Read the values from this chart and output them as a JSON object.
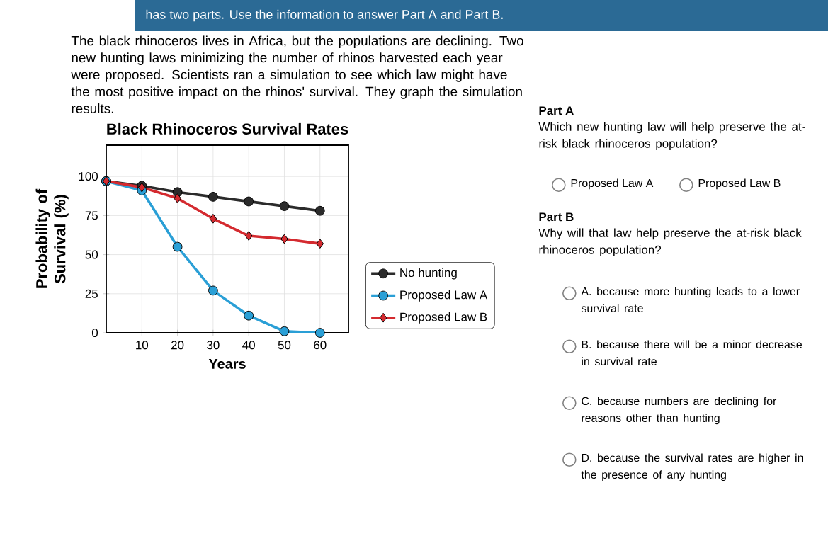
{
  "chart_data": {
    "type": "line",
    "title": "Black Rhinoceros Survival Rates",
    "xlabel": "Years",
    "ylabel": "Probability of Survival (%)",
    "x": [
      0,
      10,
      20,
      30,
      40,
      50,
      60
    ],
    "series": [
      {
        "name": "No hunting",
        "color": "#2b2b2b",
        "marker": "circle",
        "values": [
          97,
          94,
          90,
          87,
          84,
          81,
          78
        ]
      },
      {
        "name": "Proposed Law A",
        "color": "#2a9fd6",
        "marker": "circle",
        "values": [
          97,
          91,
          55,
          27,
          11,
          1,
          0
        ]
      },
      {
        "name": "Proposed Law B",
        "color": "#d42a2f",
        "marker": "diamond",
        "values": [
          97,
          93,
          86,
          73,
          62,
          60,
          57
        ]
      }
    ],
    "xlim": [
      0,
      68
    ],
    "ylim": [
      0,
      120
    ],
    "xticks": [
      10,
      20,
      30,
      40,
      50,
      60
    ],
    "yticks": [
      0,
      25,
      50,
      75,
      100
    ],
    "grid": true,
    "legend": "right",
    "line_style": "solid",
    "annotations": [
      "has two parts. Use the information to answer Part A and Part B.",
      "The black rhinoceros lives in Africa, but the populations are declining. Two new hunting laws minimizing the number of rhinos harvested each year were proposed. Scientists ran a simulation to see which law might have the most positive impact on the rhinos' survival. They graph the simulation results.",
      "Part A",
      "Which new hunting law will help preserve the at-risk black rhinoceros population?",
      "Proposed Law A",
      "Proposed Law B",
      "Part B",
      "Why will that law help preserve the at-risk black rhinoceros population?",
      "A. because more hunting leads to a lower survival rate",
      "B. because there will be a minor decrease in survival rate",
      "C. because numbers are declining for reasons other than hunting",
      "D. because the survival rates are higher in the presence of any hunting"
    ]
  }
}
